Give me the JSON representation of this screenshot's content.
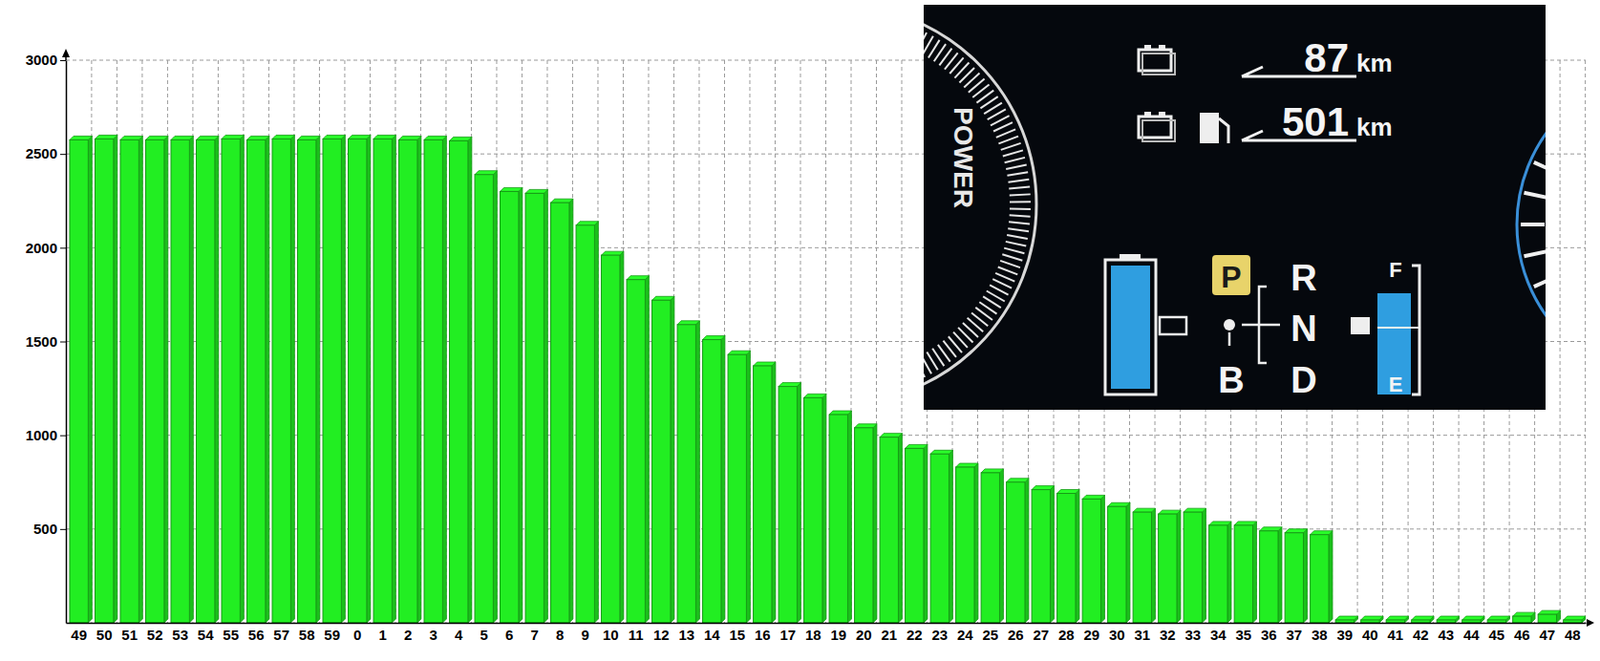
{
  "chart_data": {
    "type": "bar",
    "categories": [
      "49",
      "50",
      "51",
      "52",
      "53",
      "54",
      "55",
      "56",
      "57",
      "58",
      "59",
      "0",
      "1",
      "2",
      "3",
      "4",
      "5",
      "6",
      "7",
      "8",
      "9",
      "10",
      "11",
      "12",
      "13",
      "14",
      "15",
      "16",
      "17",
      "18",
      "19",
      "20",
      "21",
      "22",
      "23",
      "24",
      "25",
      "26",
      "27",
      "28",
      "29",
      "30",
      "31",
      "32",
      "33",
      "34",
      "35",
      "36",
      "37",
      "38",
      "39",
      "40",
      "41",
      "42",
      "43",
      "44",
      "45",
      "46",
      "47",
      "48"
    ],
    "values": [
      2575,
      2580,
      2575,
      2575,
      2575,
      2575,
      2580,
      2575,
      2580,
      2575,
      2580,
      2580,
      2580,
      2575,
      2575,
      2570,
      2390,
      2300,
      2290,
      2240,
      2120,
      1960,
      1830,
      1720,
      1590,
      1510,
      1430,
      1370,
      1260,
      1200,
      1110,
      1040,
      990,
      930,
      900,
      830,
      800,
      750,
      710,
      690,
      660,
      620,
      590,
      580,
      590,
      520,
      520,
      490,
      480,
      470,
      15,
      15,
      15,
      15,
      15,
      15,
      15,
      35,
      45,
      15
    ],
    "color": "#22ee22",
    "ylim": [
      0,
      3000
    ],
    "yticks": [
      500,
      1000,
      1500,
      2000,
      2500,
      3000
    ],
    "grid": true,
    "annotations": [
      "87",
      "km",
      "501",
      "km",
      "POWER",
      "P",
      "R",
      "N",
      "B",
      "D",
      "F",
      "E"
    ]
  }
}
